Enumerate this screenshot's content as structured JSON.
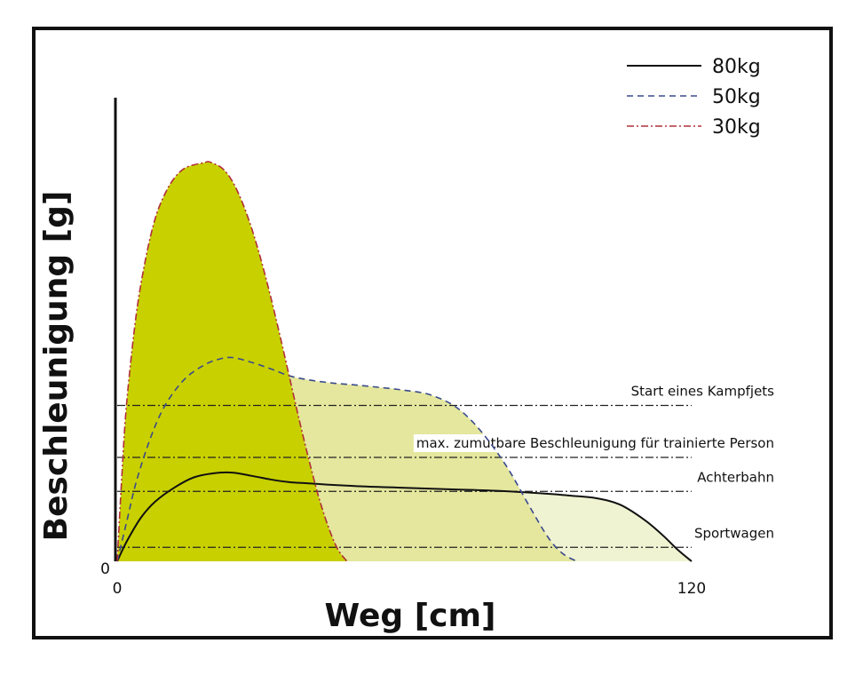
{
  "chart_data": {
    "type": "area",
    "xlabel": "Weg [cm]",
    "ylabel": "Beschleunigung [g]",
    "x_ticks": [
      "0",
      "120"
    ],
    "y_ticks": [
      "0"
    ],
    "xlim": [
      0,
      120
    ],
    "ylim": [
      0,
      100
    ],
    "legend_position": "top-right",
    "series": [
      {
        "name": "80kg",
        "line_style": "solid",
        "stroke": "#111111",
        "fill": "#f0f3d2",
        "x": [
          0,
          2,
          5,
          8,
          12,
          16,
          20,
          24,
          28,
          32,
          36,
          40,
          50,
          60,
          70,
          80,
          90,
          95,
          100,
          105,
          110,
          114,
          117,
          120
        ],
        "y": [
          0,
          5,
          11,
          15,
          18.5,
          21,
          22,
          22.2,
          21.4,
          20.5,
          19.8,
          19.5,
          18.8,
          18.4,
          18,
          17.6,
          16.9,
          16.4,
          15.8,
          14.2,
          10.5,
          6.5,
          3,
          0
        ]
      },
      {
        "name": "50kg",
        "line_style": "dashed",
        "stroke": "#3a4a8c",
        "fill": "#e4e79d",
        "x": [
          0,
          2,
          4,
          7,
          10,
          14,
          18,
          21,
          24,
          28,
          32,
          36,
          40,
          45,
          50,
          55,
          60,
          65,
          70,
          74,
          78,
          82,
          86,
          90,
          93,
          96
        ],
        "y": [
          0,
          10,
          20,
          31,
          39,
          45.5,
          49,
          50.5,
          51,
          49.8,
          48.2,
          46.4,
          45.4,
          44.6,
          44.1,
          43.5,
          42.8,
          41.8,
          39.2,
          35.2,
          29.5,
          22.5,
          14,
          6,
          2,
          0
        ]
      },
      {
        "name": "30kg",
        "line_style": "dash-dot",
        "stroke": "#b0303a",
        "fill": "#c8d000",
        "x": [
          0,
          1,
          2,
          4,
          6,
          8,
          10,
          12,
          14,
          16,
          18,
          19,
          20,
          22,
          24,
          26,
          28,
          30,
          32,
          34,
          36,
          38,
          40,
          42,
          44,
          46,
          48
        ],
        "y": [
          0,
          22,
          40,
          62,
          76,
          86,
          92,
          96,
          98.3,
          99.2,
          99.7,
          100,
          99.6,
          98.3,
          95.2,
          90.2,
          83.6,
          75.6,
          66.5,
          56.5,
          46,
          35.5,
          25.6,
          16.5,
          9,
          3.2,
          0
        ]
      }
    ],
    "reference_lines": [
      {
        "label": "Start eines Kampfjets",
        "y": 39
      },
      {
        "label": "max. zumutbare Beschleunigung für trainierte Person",
        "y": 26
      },
      {
        "label": "Achterbahn",
        "y": 17.5
      },
      {
        "label": "Sportwagen",
        "y": 3.5
      }
    ]
  }
}
